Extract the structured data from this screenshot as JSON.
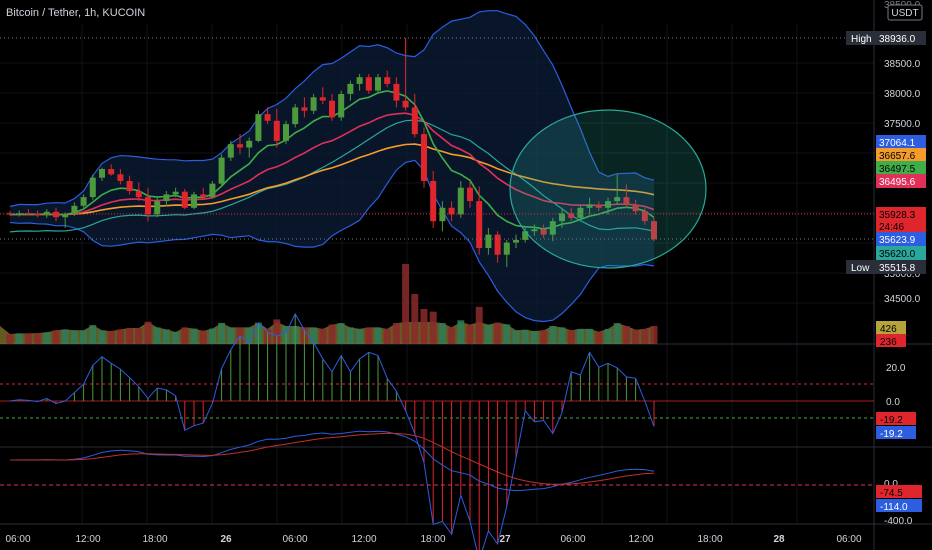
{
  "header": {
    "title": "Bitcoin / Tether, 1h, KUCOIN",
    "currency_badge": "USDT"
  },
  "colors": {
    "up": "#4c9a3c",
    "down": "#e0262d",
    "bb": "#2d5de0",
    "ema_fast": "#3fae49",
    "ema_mid": "#e0305a",
    "ema_slow": "#f39c2b",
    "basis": "#2aa79b",
    "bbfill": "#0d1f3a",
    "circle": "#2aa79b",
    "vol_fill": "#b5a33c",
    "high_low_label": "#2a2e39"
  },
  "price_axis": {
    "ticks": [
      "38500.0",
      "38000.0",
      "37500.0",
      "37000.0",
      "36500.0",
      "36000.0",
      "35500.0",
      "35000.0",
      "34500.0"
    ],
    "top_partial": "38500.0"
  },
  "price_labels": [
    {
      "text": "High",
      "value": "38936.0",
      "bg": "#2a2e39",
      "color": "#ffffff"
    },
    {
      "text": "",
      "value": "37064.1",
      "bg": "#2d5de0",
      "color": "#ffffff"
    },
    {
      "text": "",
      "value": "36657.6",
      "bg": "#f39c2b",
      "color": "#000000"
    },
    {
      "text": "",
      "value": "36497.5",
      "bg": "#3fae49",
      "color": "#000000"
    },
    {
      "text": "",
      "value": "36495.6",
      "bg": "#e0305a",
      "color": "#ffffff"
    },
    {
      "text": "",
      "value": "35928.3",
      "bg": "#e0262d",
      "color": "#000000"
    },
    {
      "text": "",
      "value": "24:46",
      "bg": "#e0262d",
      "color": "#000000"
    },
    {
      "text": "",
      "value": "35623.9",
      "bg": "#2d5de0",
      "color": "#ffffff"
    },
    {
      "text": "",
      "value": "35620.0",
      "bg": "#2aa79b",
      "color": "#000000"
    },
    {
      "text": "Low",
      "value": "35515.8",
      "bg": "#2a2e39",
      "color": "#ffffff"
    }
  ],
  "volume_labels": [
    {
      "value": "426",
      "bg": "#b5a33c",
      "color": "#000000"
    },
    {
      "value": "236",
      "bg": "#e0262d",
      "color": "#000000"
    }
  ],
  "osc1": {
    "ticks": [
      "20.0",
      "0.0"
    ],
    "labels": [
      {
        "value": "-19.2",
        "bg": "#e0262d",
        "color": "#000000"
      },
      {
        "value": "-19.2",
        "bg": "#2d5de0",
        "color": "#ffffff"
      }
    ]
  },
  "osc2": {
    "ticks": [
      "0.0",
      "-400.0"
    ],
    "labels": [
      {
        "value": "-74.5",
        "bg": "#e0262d",
        "color": "#000000"
      },
      {
        "value": "-114.0",
        "bg": "#2d5de0",
        "color": "#ffffff"
      }
    ]
  },
  "time_axis": [
    "06:00",
    "12:00",
    "18:00",
    "26",
    "06:00",
    "12:00",
    "18:00",
    "27",
    "06:00",
    "12:00",
    "18:00",
    "28",
    "06:00"
  ],
  "chart_data": {
    "type": "candlestick",
    "candles": [
      [
        36320,
        36350,
        36280,
        36300
      ],
      [
        36300,
        36360,
        36270,
        36320
      ],
      [
        36320,
        36380,
        36290,
        36310
      ],
      [
        36310,
        36360,
        36260,
        36290
      ],
      [
        36290,
        36380,
        36250,
        36340
      ],
      [
        36340,
        36400,
        36200,
        36260
      ],
      [
        36260,
        36330,
        36100,
        36300
      ],
      [
        36300,
        36480,
        36280,
        36430
      ],
      [
        36430,
        36600,
        36400,
        36560
      ],
      [
        36560,
        36900,
        36520,
        36850
      ],
      [
        36850,
        37000,
        36800,
        36980
      ],
      [
        36980,
        37050,
        36880,
        36900
      ],
      [
        36900,
        36980,
        36750,
        36800
      ],
      [
        36800,
        36880,
        36600,
        36650
      ],
      [
        36650,
        36780,
        36500,
        36560
      ],
      [
        36560,
        36700,
        36200,
        36300
      ],
      [
        36300,
        36560,
        36260,
        36500
      ],
      [
        36500,
        36650,
        36420,
        36600
      ],
      [
        36600,
        36700,
        36560,
        36640
      ],
      [
        36640,
        36680,
        36380,
        36400
      ],
      [
        36400,
        36640,
        36380,
        36600
      ],
      [
        36600,
        36700,
        36520,
        36560
      ],
      [
        36560,
        36800,
        36540,
        36760
      ],
      [
        36760,
        37200,
        36740,
        37150
      ],
      [
        37150,
        37400,
        37100,
        37350
      ],
      [
        37350,
        37500,
        37200,
        37300
      ],
      [
        37300,
        37450,
        37150,
        37400
      ],
      [
        37400,
        37850,
        37380,
        37800
      ],
      [
        37800,
        37900,
        37650,
        37700
      ],
      [
        37700,
        37880,
        37300,
        37400
      ],
      [
        37400,
        37700,
        37350,
        37650
      ],
      [
        37650,
        37950,
        37600,
        37900
      ],
      [
        37900,
        38050,
        37750,
        37850
      ],
      [
        37850,
        38100,
        37800,
        38050
      ],
      [
        38050,
        38200,
        37950,
        38000
      ],
      [
        38000,
        38100,
        37700,
        37750
      ],
      [
        37750,
        38150,
        37700,
        38100
      ],
      [
        38100,
        38300,
        38000,
        38250
      ],
      [
        38250,
        38400,
        38150,
        38350
      ],
      [
        38350,
        38400,
        38100,
        38150
      ],
      [
        38150,
        38400,
        38100,
        38350
      ],
      [
        38350,
        38450,
        38200,
        38250
      ],
      [
        38250,
        38350,
        37900,
        38000
      ],
      [
        38000,
        38936,
        37850,
        37900
      ],
      [
        37900,
        38100,
        37450,
        37500
      ],
      [
        37500,
        37600,
        36700,
        36800
      ],
      [
        36800,
        36950,
        36100,
        36200
      ],
      [
        36200,
        36500,
        36050,
        36400
      ],
      [
        36400,
        36500,
        36200,
        36300
      ],
      [
        36300,
        36800,
        36250,
        36700
      ],
      [
        36700,
        36800,
        36400,
        36500
      ],
      [
        36500,
        36720,
        35700,
        35800
      ],
      [
        35800,
        36100,
        35700,
        36000
      ],
      [
        36000,
        36050,
        35580,
        35700
      ],
      [
        35700,
        35920,
        35515,
        35880
      ],
      [
        35880,
        36000,
        35800,
        35920
      ],
      [
        35920,
        36100,
        35880,
        36050
      ],
      [
        36050,
        36150,
        35980,
        36080
      ],
      [
        36080,
        36150,
        35950,
        36000
      ],
      [
        36000,
        36250,
        35900,
        36200
      ],
      [
        36200,
        36400,
        36100,
        36320
      ],
      [
        36320,
        36400,
        36200,
        36250
      ],
      [
        36250,
        36450,
        36200,
        36400
      ],
      [
        36400,
        36550,
        36300,
        36450
      ],
      [
        36450,
        36500,
        36350,
        36400
      ],
      [
        36400,
        36550,
        36300,
        36500
      ],
      [
        36500,
        36900,
        36450,
        36560
      ],
      [
        36560,
        36750,
        36400,
        36450
      ],
      [
        36450,
        36520,
        36300,
        36350
      ],
      [
        36350,
        36400,
        36150,
        36200
      ],
      [
        36200,
        36250,
        35900,
        35928
      ]
    ],
    "ylim": [
      34200,
      39100
    ]
  }
}
